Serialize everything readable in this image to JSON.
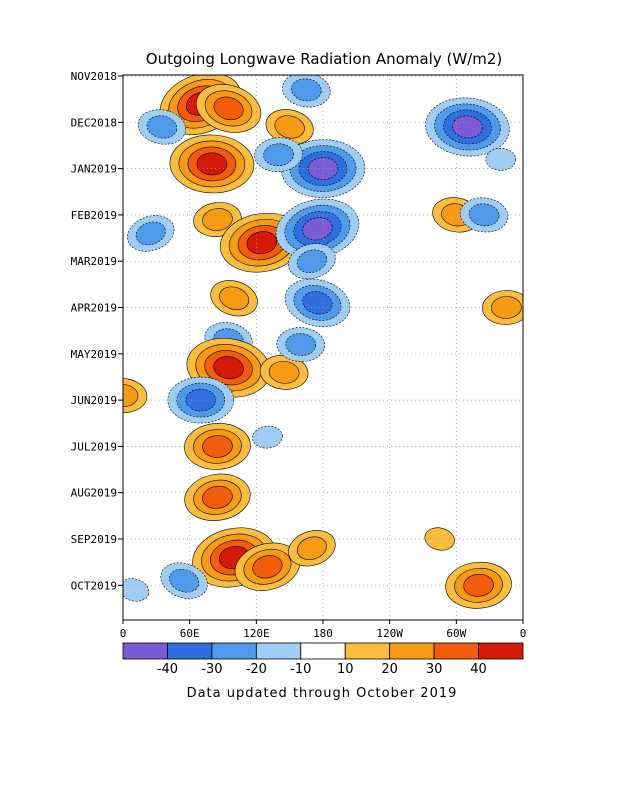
{
  "chart_data": {
    "type": "heatmap",
    "title": "Outgoing Longwave Radiation Anomaly (W/m2)",
    "xlabel": "",
    "ylabel": "",
    "x_tick_labels": [
      "0",
      "60E",
      "120E",
      "180",
      "120W",
      "60W",
      "0"
    ],
    "x_ticks_lon": [
      0,
      60,
      120,
      180,
      240,
      300,
      360
    ],
    "y_tick_labels": [
      "NOV2018",
      "DEC2018",
      "JAN2019",
      "FEB2019",
      "MAR2019",
      "APR2019",
      "MAY2019",
      "JUN2019",
      "JUL2019",
      "AUG2019",
      "SEP2019",
      "OCT2019"
    ],
    "grid": true,
    "colorbar": {
      "labels": [
        "-40",
        "-30",
        "-20",
        "-10",
        "10",
        "20",
        "30",
        "40"
      ],
      "colors": [
        "#7b5cd6",
        "#2f6fe0",
        "#4f9aeb",
        "#9fcdf4",
        "#ffffff",
        "#fbbd3d",
        "#f79a14",
        "#f25c0a",
        "#d61a0a"
      ]
    },
    "features": [
      {
        "lon": 70,
        "month": 0.6,
        "value": 40
      },
      {
        "lon": 95,
        "month": 0.7,
        "value": 30
      },
      {
        "lon": 150,
        "month": 1.1,
        "value": 20
      },
      {
        "lon": 35,
        "month": 1.1,
        "value": -20
      },
      {
        "lon": 165,
        "month": 0.3,
        "value": -20
      },
      {
        "lon": 310,
        "month": 1.1,
        "value": -40
      },
      {
        "lon": 80,
        "month": 1.9,
        "value": 40
      },
      {
        "lon": 180,
        "month": 2.0,
        "value": -40
      },
      {
        "lon": 140,
        "month": 1.7,
        "value": -20
      },
      {
        "lon": 85,
        "month": 3.1,
        "value": 20
      },
      {
        "lon": 125,
        "month": 3.6,
        "value": 40
      },
      {
        "lon": 175,
        "month": 3.3,
        "value": -40
      },
      {
        "lon": 170,
        "month": 4.0,
        "value": -20
      },
      {
        "lon": 25,
        "month": 3.4,
        "value": -20
      },
      {
        "lon": 100,
        "month": 4.8,
        "value": 20
      },
      {
        "lon": 175,
        "month": 4.9,
        "value": -30
      },
      {
        "lon": 95,
        "month": 5.7,
        "value": -20
      },
      {
        "lon": 95,
        "month": 6.3,
        "value": 40
      },
      {
        "lon": 145,
        "month": 6.4,
        "value": 20
      },
      {
        "lon": 160,
        "month": 5.8,
        "value": -20
      },
      {
        "lon": 70,
        "month": 7.0,
        "value": -30
      },
      {
        "lon": 85,
        "month": 8.0,
        "value": 30
      },
      {
        "lon": 130,
        "month": 7.8,
        "value": -10
      },
      {
        "lon": 85,
        "month": 9.1,
        "value": 30
      },
      {
        "lon": 100,
        "month": 10.4,
        "value": 40
      },
      {
        "lon": 130,
        "month": 10.6,
        "value": 30
      },
      {
        "lon": 170,
        "month": 10.2,
        "value": 20
      },
      {
        "lon": 55,
        "month": 10.9,
        "value": -20
      },
      {
        "lon": 10,
        "month": 11.1,
        "value": -10
      },
      {
        "lon": 285,
        "month": 10.0,
        "value": 10
      },
      {
        "lon": 300,
        "month": 3.0,
        "value": 20
      },
      {
        "lon": 325,
        "month": 3.0,
        "value": -20
      },
      {
        "lon": 0,
        "month": 6.9,
        "value": 20
      },
      {
        "lon": 340,
        "month": 1.8,
        "value": -10
      },
      {
        "lon": 345,
        "month": 5.0,
        "value": 20
      },
      {
        "lon": 320,
        "month": 11.0,
        "value": 30
      }
    ]
  },
  "footer": {
    "note": "Data updated through October 2019"
  }
}
